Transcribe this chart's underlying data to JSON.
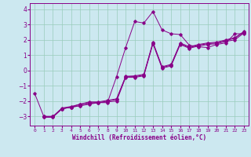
{
  "xlabel": "Windchill (Refroidissement éolien,°C)",
  "xlim": [
    -0.5,
    23.5
  ],
  "ylim": [
    -3.6,
    4.4
  ],
  "yticks": [
    -3,
    -2,
    -1,
    0,
    1,
    2,
    3,
    4
  ],
  "xticks": [
    0,
    1,
    2,
    3,
    4,
    5,
    6,
    7,
    8,
    9,
    10,
    11,
    12,
    13,
    14,
    15,
    16,
    17,
    18,
    19,
    20,
    21,
    22,
    23
  ],
  "bg_color": "#cce8f0",
  "line_color": "#880088",
  "grid_color": "#99ccbb",
  "line1_x": [
    0,
    1,
    2,
    3,
    4,
    5,
    6,
    7,
    8,
    9,
    10,
    11,
    12,
    13,
    14,
    15,
    16,
    17,
    18,
    19,
    20,
    21,
    22,
    23
  ],
  "line1_y": [
    -1.5,
    -3.0,
    -3.0,
    -2.5,
    -2.4,
    -2.3,
    -2.2,
    -2.1,
    -2.1,
    -0.4,
    1.5,
    3.2,
    3.1,
    3.85,
    2.65,
    2.4,
    2.35,
    1.65,
    1.55,
    1.5,
    1.7,
    1.8,
    2.4,
    2.4
  ],
  "line2_x": [
    1,
    2,
    3,
    4,
    5,
    6,
    7,
    8,
    9,
    10,
    11,
    12,
    13,
    14,
    15,
    16,
    17,
    18,
    19,
    20,
    21,
    22,
    23
  ],
  "line2_y": [
    -3.05,
    -3.05,
    -2.5,
    -2.4,
    -2.3,
    -2.15,
    -2.1,
    -2.05,
    -2.0,
    -0.45,
    -0.45,
    -0.35,
    1.75,
    0.15,
    0.3,
    1.7,
    1.45,
    1.6,
    1.7,
    1.75,
    1.9,
    2.0,
    2.45
  ],
  "line3_x": [
    1,
    2,
    3,
    4,
    5,
    6,
    7,
    8,
    9,
    10,
    11,
    12,
    13,
    14,
    15,
    16,
    17,
    18,
    19,
    20,
    21,
    22,
    23
  ],
  "line3_y": [
    -3.05,
    -3.05,
    -2.5,
    -2.4,
    -2.2,
    -2.1,
    -2.1,
    -2.0,
    -1.9,
    -0.4,
    -0.4,
    -0.3,
    1.8,
    0.2,
    0.35,
    1.75,
    1.5,
    1.65,
    1.75,
    1.8,
    1.95,
    2.1,
    2.5
  ],
  "line4_x": [
    1,
    2,
    3,
    4,
    5,
    6,
    7,
    8,
    9,
    10,
    11,
    12,
    13,
    14,
    15,
    16,
    17,
    18,
    19,
    20,
    21,
    22,
    23
  ],
  "line4_y": [
    -3.0,
    -3.0,
    -2.45,
    -2.35,
    -2.2,
    -2.05,
    -2.05,
    -1.95,
    -1.85,
    -0.38,
    -0.35,
    -0.25,
    1.85,
    0.25,
    0.4,
    1.8,
    1.55,
    1.7,
    1.8,
    1.85,
    2.0,
    2.15,
    2.55
  ]
}
